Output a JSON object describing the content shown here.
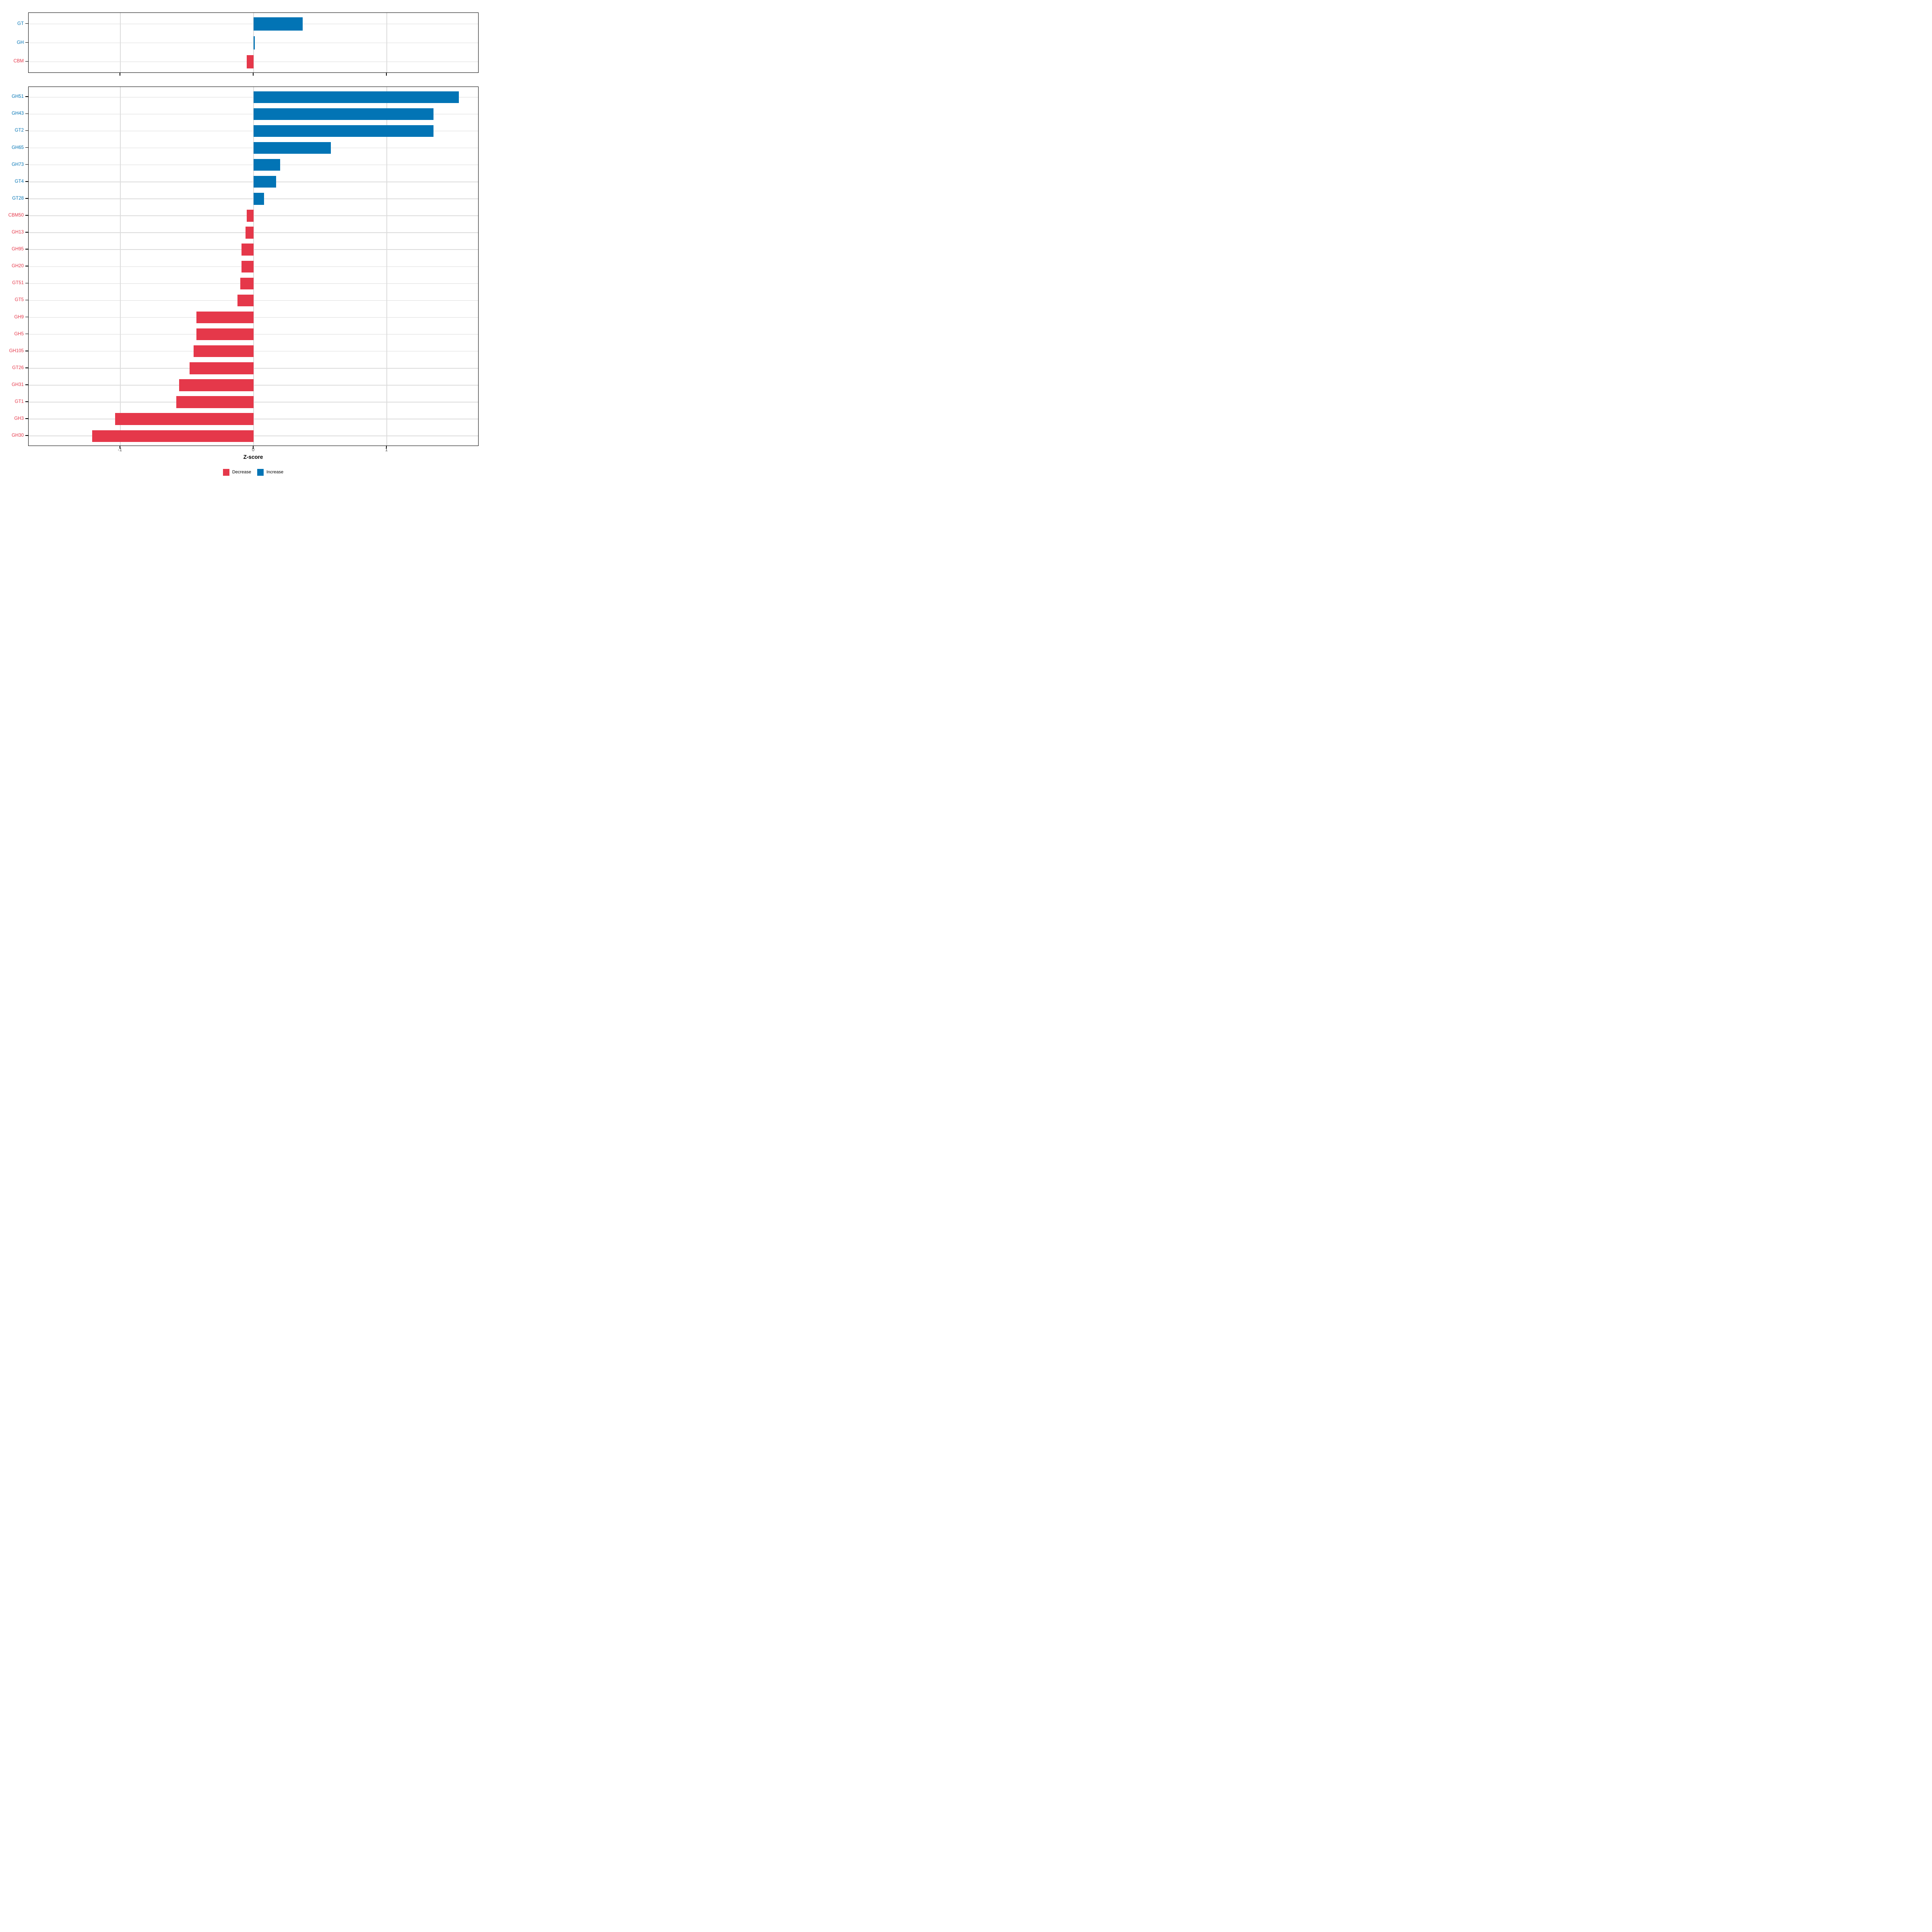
{
  "chart_data": {
    "type": "bar",
    "orientation": "horizontal",
    "title": "",
    "xlabel": "Z-score",
    "ylabel": "",
    "xlim": [
      -1.69,
      1.69
    ],
    "xticks": [
      -1,
      0,
      1
    ],
    "xtick_labels": [
      "-1",
      "0",
      "1"
    ],
    "grid": true,
    "bar_width_fraction": 0.7,
    "colors": {
      "increase": "#0274B5",
      "decrease": "#E5384A",
      "grid": "#DCDCDC",
      "axis_text": "#4D4D4D",
      "panel_border": "#000000"
    },
    "legend": {
      "position": "bottom",
      "items": [
        {
          "label": "Decrease",
          "color": "#E5384A"
        },
        {
          "label": "Increase",
          "color": "#0274B5"
        }
      ]
    },
    "panels": [
      {
        "categories": [
          "GT",
          "GH",
          "CBM"
        ],
        "values": [
          0.37,
          0.01,
          -0.05
        ]
      },
      {
        "categories": [
          "GH51",
          "GH43",
          "GT2",
          "GH65",
          "GH73",
          "GT4",
          "GT28",
          "CBM50",
          "GH13",
          "GH95",
          "GH20",
          "GT51",
          "GT5",
          "GH9",
          "GH5",
          "GH105",
          "GT26",
          "GH31",
          "GT1",
          "GH3",
          "GH30"
        ],
        "values": [
          1.54,
          1.35,
          1.35,
          0.58,
          0.2,
          0.17,
          0.08,
          -0.05,
          -0.06,
          -0.09,
          -0.09,
          -0.1,
          -0.12,
          -0.43,
          -0.43,
          -0.45,
          -0.48,
          -0.56,
          -0.58,
          -1.04,
          -1.21
        ]
      }
    ]
  }
}
